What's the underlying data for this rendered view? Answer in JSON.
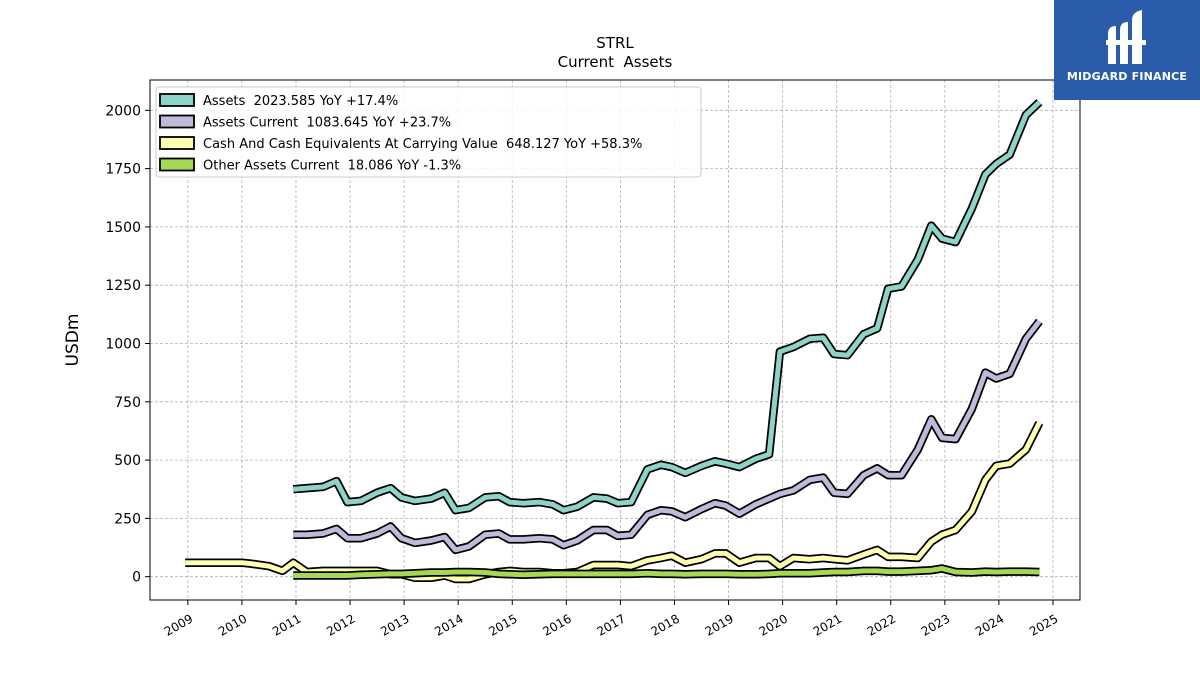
{
  "chart_data": {
    "type": "line",
    "title": "STRL",
    "subtitle": "Current  Assets",
    "ylabel": "USDm",
    "xlabel": "",
    "ylim": [
      -100,
      2130
    ],
    "xlim": [
      2008.3,
      2025.5
    ],
    "yticks": [
      0,
      250,
      500,
      750,
      1000,
      1250,
      1500,
      1750,
      2000
    ],
    "xticks": [
      "2009",
      "2010",
      "2011",
      "2012",
      "2013",
      "2014",
      "2015",
      "2016",
      "2017",
      "2018",
      "2019",
      "2020",
      "2021",
      "2022",
      "2023",
      "2024",
      "2025"
    ],
    "grid": true,
    "legend_position": "top-left",
    "series": [
      {
        "name": "Assets  2023.585 YoY +17.4%",
        "color": "#8dd3c7",
        "points": [
          [
            2010.95,
            375
          ],
          [
            2011.2,
            380
          ],
          [
            2011.5,
            385
          ],
          [
            2011.75,
            410
          ],
          [
            2011.95,
            320
          ],
          [
            2012.2,
            325
          ],
          [
            2012.5,
            360
          ],
          [
            2012.75,
            380
          ],
          [
            2012.95,
            340
          ],
          [
            2013.2,
            325
          ],
          [
            2013.5,
            335
          ],
          [
            2013.75,
            360
          ],
          [
            2013.95,
            285
          ],
          [
            2014.2,
            295
          ],
          [
            2014.5,
            340
          ],
          [
            2014.75,
            345
          ],
          [
            2014.95,
            320
          ],
          [
            2015.2,
            315
          ],
          [
            2015.5,
            320
          ],
          [
            2015.75,
            310
          ],
          [
            2015.95,
            285
          ],
          [
            2016.2,
            300
          ],
          [
            2016.5,
            340
          ],
          [
            2016.75,
            335
          ],
          [
            2016.95,
            315
          ],
          [
            2017.2,
            320
          ],
          [
            2017.5,
            460
          ],
          [
            2017.75,
            480
          ],
          [
            2017.95,
            470
          ],
          [
            2018.2,
            445
          ],
          [
            2018.5,
            475
          ],
          [
            2018.75,
            495
          ],
          [
            2018.95,
            485
          ],
          [
            2019.2,
            470
          ],
          [
            2019.5,
            505
          ],
          [
            2019.75,
            525
          ],
          [
            2019.95,
            965
          ],
          [
            2020.2,
            985
          ],
          [
            2020.5,
            1020
          ],
          [
            2020.75,
            1025
          ],
          [
            2020.95,
            955
          ],
          [
            2021.2,
            950
          ],
          [
            2021.5,
            1040
          ],
          [
            2021.75,
            1065
          ],
          [
            2021.95,
            1235
          ],
          [
            2022.2,
            1245
          ],
          [
            2022.5,
            1360
          ],
          [
            2022.75,
            1505
          ],
          [
            2022.95,
            1450
          ],
          [
            2023.2,
            1435
          ],
          [
            2023.5,
            1580
          ],
          [
            2023.75,
            1725
          ],
          [
            2023.95,
            1770
          ],
          [
            2024.2,
            1810
          ],
          [
            2024.5,
            1980
          ],
          [
            2024.75,
            2035
          ]
        ]
      },
      {
        "name": "Assets Current  1083.645 YoY +23.7%",
        "color": "#bebada",
        "points": [
          [
            2010.95,
            180
          ],
          [
            2011.2,
            180
          ],
          [
            2011.5,
            185
          ],
          [
            2011.75,
            205
          ],
          [
            2011.95,
            165
          ],
          [
            2012.2,
            165
          ],
          [
            2012.5,
            185
          ],
          [
            2012.75,
            215
          ],
          [
            2012.95,
            165
          ],
          [
            2013.2,
            145
          ],
          [
            2013.5,
            155
          ],
          [
            2013.75,
            170
          ],
          [
            2013.95,
            115
          ],
          [
            2014.2,
            130
          ],
          [
            2014.5,
            180
          ],
          [
            2014.75,
            185
          ],
          [
            2014.95,
            160
          ],
          [
            2015.2,
            160
          ],
          [
            2015.5,
            165
          ],
          [
            2015.75,
            160
          ],
          [
            2015.95,
            135
          ],
          [
            2016.2,
            155
          ],
          [
            2016.5,
            200
          ],
          [
            2016.75,
            200
          ],
          [
            2016.95,
            175
          ],
          [
            2017.2,
            180
          ],
          [
            2017.5,
            265
          ],
          [
            2017.75,
            285
          ],
          [
            2017.95,
            280
          ],
          [
            2018.2,
            255
          ],
          [
            2018.5,
            290
          ],
          [
            2018.75,
            315
          ],
          [
            2018.95,
            305
          ],
          [
            2019.2,
            270
          ],
          [
            2019.5,
            310
          ],
          [
            2019.75,
            335
          ],
          [
            2019.95,
            355
          ],
          [
            2020.2,
            370
          ],
          [
            2020.5,
            415
          ],
          [
            2020.75,
            425
          ],
          [
            2020.95,
            360
          ],
          [
            2021.2,
            355
          ],
          [
            2021.5,
            435
          ],
          [
            2021.75,
            465
          ],
          [
            2021.95,
            435
          ],
          [
            2022.2,
            435
          ],
          [
            2022.5,
            545
          ],
          [
            2022.75,
            675
          ],
          [
            2022.95,
            595
          ],
          [
            2023.2,
            590
          ],
          [
            2023.5,
            720
          ],
          [
            2023.75,
            875
          ],
          [
            2023.95,
            850
          ],
          [
            2024.2,
            870
          ],
          [
            2024.5,
            1020
          ],
          [
            2024.75,
            1095
          ]
        ]
      },
      {
        "name": "Cash And Cash Equivalents At Carrying Value  648.127 YoY +58.3%",
        "color": "#ffffb3",
        "points": [
          [
            2008.95,
            60
          ],
          [
            2009.2,
            60
          ],
          [
            2009.5,
            60
          ],
          [
            2009.75,
            60
          ],
          [
            2010.0,
            60
          ],
          [
            2010.2,
            55
          ],
          [
            2010.5,
            45
          ],
          [
            2010.75,
            25
          ],
          [
            2010.95,
            60
          ],
          [
            2011.2,
            20
          ],
          [
            2011.5,
            25
          ],
          [
            2011.75,
            25
          ],
          [
            2011.95,
            25
          ],
          [
            2012.2,
            25
          ],
          [
            2012.5,
            25
          ],
          [
            2012.75,
            10
          ],
          [
            2012.95,
            10
          ],
          [
            2013.2,
            -5
          ],
          [
            2013.5,
            -5
          ],
          [
            2013.75,
            5
          ],
          [
            2013.95,
            -10
          ],
          [
            2014.2,
            -10
          ],
          [
            2014.5,
            10
          ],
          [
            2014.75,
            20
          ],
          [
            2014.95,
            25
          ],
          [
            2015.2,
            20
          ],
          [
            2015.5,
            20
          ],
          [
            2015.75,
            15
          ],
          [
            2015.95,
            15
          ],
          [
            2016.2,
            20
          ],
          [
            2016.5,
            50
          ],
          [
            2016.75,
            50
          ],
          [
            2016.95,
            50
          ],
          [
            2017.2,
            45
          ],
          [
            2017.5,
            70
          ],
          [
            2017.75,
            80
          ],
          [
            2017.95,
            90
          ],
          [
            2018.2,
            60
          ],
          [
            2018.5,
            75
          ],
          [
            2018.75,
            100
          ],
          [
            2018.95,
            100
          ],
          [
            2019.2,
            60
          ],
          [
            2019.5,
            80
          ],
          [
            2019.75,
            80
          ],
          [
            2019.95,
            45
          ],
          [
            2020.2,
            80
          ],
          [
            2020.5,
            75
          ],
          [
            2020.75,
            80
          ],
          [
            2020.95,
            75
          ],
          [
            2021.2,
            70
          ],
          [
            2021.5,
            95
          ],
          [
            2021.75,
            115
          ],
          [
            2021.95,
            85
          ],
          [
            2022.2,
            85
          ],
          [
            2022.5,
            80
          ],
          [
            2022.75,
            150
          ],
          [
            2022.95,
            180
          ],
          [
            2023.2,
            200
          ],
          [
            2023.5,
            280
          ],
          [
            2023.75,
            415
          ],
          [
            2023.95,
            475
          ],
          [
            2024.2,
            485
          ],
          [
            2024.5,
            545
          ],
          [
            2024.75,
            660
          ]
        ]
      },
      {
        "name": "Other Assets Current  18.086 YoY -1.3%",
        "color": "#a6d854",
        "points": [
          [
            2010.95,
            5
          ],
          [
            2011.2,
            5
          ],
          [
            2011.5,
            5
          ],
          [
            2011.75,
            5
          ],
          [
            2011.95,
            5
          ],
          [
            2012.2,
            8
          ],
          [
            2012.5,
            10
          ],
          [
            2012.75,
            12
          ],
          [
            2012.95,
            12
          ],
          [
            2013.2,
            15
          ],
          [
            2013.5,
            18
          ],
          [
            2013.75,
            18
          ],
          [
            2013.95,
            20
          ],
          [
            2014.2,
            20
          ],
          [
            2014.5,
            18
          ],
          [
            2014.75,
            12
          ],
          [
            2014.95,
            10
          ],
          [
            2015.2,
            8
          ],
          [
            2015.5,
            10
          ],
          [
            2015.75,
            12
          ],
          [
            2015.95,
            12
          ],
          [
            2016.2,
            12
          ],
          [
            2016.5,
            12
          ],
          [
            2016.75,
            12
          ],
          [
            2016.95,
            12
          ],
          [
            2017.2,
            12
          ],
          [
            2017.5,
            15
          ],
          [
            2017.75,
            12
          ],
          [
            2017.95,
            12
          ],
          [
            2018.2,
            10
          ],
          [
            2018.5,
            12
          ],
          [
            2018.75,
            12
          ],
          [
            2018.95,
            12
          ],
          [
            2019.2,
            10
          ],
          [
            2019.5,
            10
          ],
          [
            2019.75,
            12
          ],
          [
            2019.95,
            15
          ],
          [
            2020.2,
            15
          ],
          [
            2020.5,
            15
          ],
          [
            2020.75,
            18
          ],
          [
            2020.95,
            20
          ],
          [
            2021.2,
            20
          ],
          [
            2021.5,
            25
          ],
          [
            2021.75,
            25
          ],
          [
            2021.95,
            22
          ],
          [
            2022.2,
            22
          ],
          [
            2022.5,
            25
          ],
          [
            2022.75,
            28
          ],
          [
            2022.95,
            35
          ],
          [
            2023.2,
            20
          ],
          [
            2023.5,
            18
          ],
          [
            2023.75,
            22
          ],
          [
            2023.95,
            20
          ],
          [
            2024.2,
            22
          ],
          [
            2024.5,
            22
          ],
          [
            2024.75,
            20
          ]
        ]
      }
    ]
  },
  "brand": {
    "name": "MIDGARD FINANCE",
    "color": "#2a5caa"
  }
}
